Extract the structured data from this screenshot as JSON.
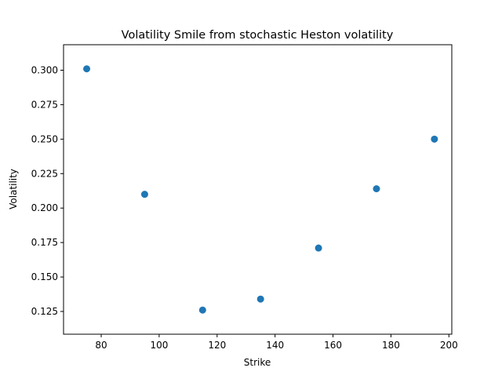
{
  "chart_data": {
    "type": "scatter",
    "title": "Volatility Smile from stochastic Heston volatility",
    "xlabel": "Strike",
    "ylabel": "Volatility",
    "xlim": [
      67,
      201
    ],
    "ylim": [
      0.1085,
      0.3185
    ],
    "xticks": [
      80,
      100,
      120,
      140,
      160,
      180,
      200
    ],
    "yticks": [
      0.125,
      0.15,
      0.175,
      0.2,
      0.225,
      0.25,
      0.275,
      0.3
    ],
    "ytick_labels": [
      "0.125",
      "0.150",
      "0.175",
      "0.200",
      "0.225",
      "0.250",
      "0.275",
      "0.300"
    ],
    "grid": false,
    "marker_color": "#1f77b4",
    "series": [
      {
        "x": [
          75,
          95,
          115,
          135,
          155,
          175,
          195
        ],
        "y": [
          0.301,
          0.21,
          0.126,
          0.134,
          0.171,
          0.214,
          0.25
        ]
      }
    ]
  }
}
